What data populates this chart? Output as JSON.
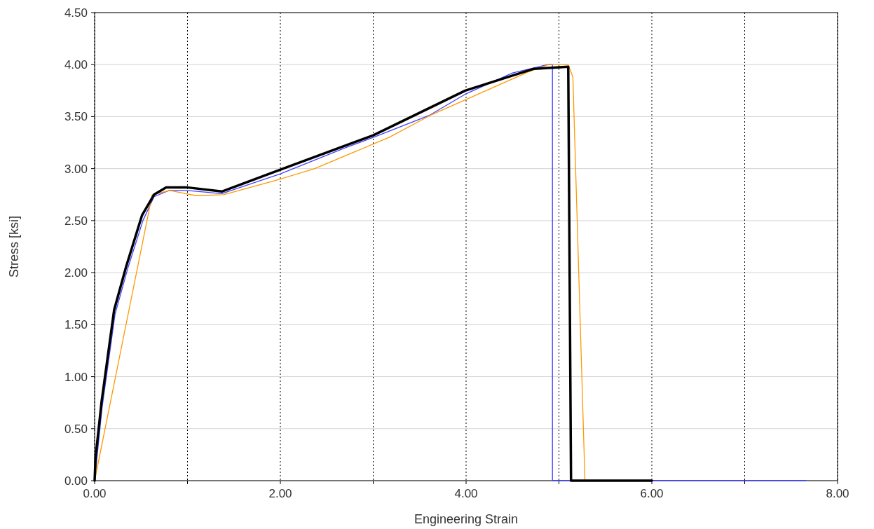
{
  "chart_data": {
    "type": "line",
    "xlabel": "Engineering Strain",
    "ylabel": "Stress [ksi]",
    "xlim": [
      0,
      8
    ],
    "ylim": [
      0,
      4.5
    ],
    "xticks": [
      {
        "value": 0,
        "label": "0.00"
      },
      {
        "value": 1,
        "label": null
      },
      {
        "value": 2,
        "label": "2.00"
      },
      {
        "value": 3,
        "label": null
      },
      {
        "value": 4,
        "label": "4.00"
      },
      {
        "value": 5,
        "label": null
      },
      {
        "value": 6,
        "label": "6.00"
      },
      {
        "value": 7,
        "label": null
      },
      {
        "value": 8,
        "label": "8.00"
      }
    ],
    "yticks": [
      {
        "value": 0,
        "label": "0.00"
      },
      {
        "value": 0.5,
        "label": "0.50"
      },
      {
        "value": 1,
        "label": "1.00"
      },
      {
        "value": 1.5,
        "label": "1.50"
      },
      {
        "value": 2,
        "label": "2.00"
      },
      {
        "value": 2.5,
        "label": "2.50"
      },
      {
        "value": 3,
        "label": "3.00"
      },
      {
        "value": 3.5,
        "label": "3.50"
      },
      {
        "value": 4,
        "label": "4.00"
      },
      {
        "value": 4.5,
        "label": "4.50"
      }
    ],
    "grid": true,
    "marker": "none",
    "line_style": "solid",
    "series": [
      {
        "color": "#4040ff",
        "x": [
          0,
          0.08,
          0.22,
          0.36,
          0.52,
          0.64,
          0.8,
          1.0,
          1.37,
          2.0,
          2.7,
          3.0,
          3.6,
          4.0,
          4.5,
          4.88,
          4.93,
          4.93,
          7.66
        ],
        "values": [
          0,
          0.7,
          1.6,
          2.05,
          2.5,
          2.73,
          2.79,
          2.79,
          2.76,
          2.95,
          3.2,
          3.3,
          3.51,
          3.72,
          3.92,
          4.0,
          4.0,
          0,
          0
        ]
      },
      {
        "color": "#ff9900",
        "x": [
          0,
          0.62,
          0.81,
          1.09,
          1.39,
          2.0,
          2.37,
          3.17,
          3.61,
          4.67,
          4.89,
          5.1,
          5.15,
          5.28
        ],
        "values": [
          0,
          2.75,
          2.79,
          2.74,
          2.75,
          2.9,
          3.0,
          3.3,
          3.51,
          3.93,
          4.0,
          4.0,
          3.88,
          0
        ]
      },
      {
        "color": "#000000",
        "x": [
          0,
          0.01,
          0.075,
          0.21,
          0.34,
          0.51,
          0.64,
          0.77,
          0.99,
          1.37,
          2.0,
          3.0,
          3.99,
          4.73,
          5.1,
          5.13,
          6.0
        ],
        "values": [
          0,
          0.22,
          0.76,
          1.64,
          2.06,
          2.55,
          2.75,
          2.82,
          2.82,
          2.78,
          2.99,
          3.32,
          3.75,
          3.96,
          3.98,
          0,
          0
        ]
      }
    ]
  }
}
